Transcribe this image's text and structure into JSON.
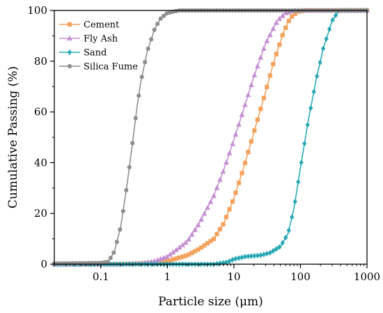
{
  "chart_data": {
    "type": "line",
    "x_scale": "log",
    "xlabel": "Particle size (μm)",
    "ylabel": "Cumulative Passing (%)",
    "xlim": [
      0.02,
      1000
    ],
    "ylim": [
      0,
      100
    ],
    "x_ticks": [
      0.1,
      1,
      10,
      100,
      1000
    ],
    "x_tick_labels": [
      "0.1",
      "1",
      "10",
      "100",
      "1000"
    ],
    "y_ticks": [
      0,
      20,
      40,
      60,
      80,
      100
    ],
    "y_tick_labels": [
      "0",
      "20",
      "40",
      "60",
      "80",
      "100"
    ],
    "grid": false,
    "legend_position": "top-left",
    "series": [
      {
        "name": "Cement",
        "color": "#F5A25D",
        "marker": "square",
        "points": [
          [
            0.2,
            0
          ],
          [
            0.4,
            0.2
          ],
          [
            0.6,
            0.5
          ],
          [
            1,
            1.2
          ],
          [
            2,
            3.5
          ],
          [
            3,
            6
          ],
          [
            5,
            10
          ],
          [
            7,
            16
          ],
          [
            10,
            26
          ],
          [
            14,
            38
          ],
          [
            20,
            52
          ],
          [
            30,
            68
          ],
          [
            40,
            80
          ],
          [
            55,
            91
          ],
          [
            70,
            97
          ],
          [
            90,
            99.5
          ],
          [
            120,
            100
          ],
          [
            1000,
            100
          ]
        ]
      },
      {
        "name": "Fly Ash",
        "color": "#C58FD2",
        "marker": "triangle",
        "points": [
          [
            0.2,
            0
          ],
          [
            0.4,
            0.4
          ],
          [
            0.6,
            1
          ],
          [
            1,
            3
          ],
          [
            2,
            9
          ],
          [
            3,
            16
          ],
          [
            5,
            27
          ],
          [
            7,
            37
          ],
          [
            10,
            49
          ],
          [
            14,
            61
          ],
          [
            20,
            74
          ],
          [
            30,
            87
          ],
          [
            45,
            96
          ],
          [
            60,
            99
          ],
          [
            80,
            100
          ],
          [
            1000,
            100
          ]
        ]
      },
      {
        "name": "Sand",
        "color": "#2AA9B5",
        "marker": "diamond",
        "points": [
          [
            0.02,
            0
          ],
          [
            5,
            0
          ],
          [
            8,
            0.8
          ],
          [
            10,
            2
          ],
          [
            15,
            3
          ],
          [
            25,
            3.5
          ],
          [
            35,
            4.5
          ],
          [
            50,
            7
          ],
          [
            65,
            12
          ],
          [
            80,
            22
          ],
          [
            100,
            38
          ],
          [
            130,
            56
          ],
          [
            170,
            72
          ],
          [
            220,
            85
          ],
          [
            300,
            96
          ],
          [
            380,
            100
          ],
          [
            1000,
            100
          ]
        ]
      },
      {
        "name": "Silica Fume",
        "color": "#8E8E8E",
        "marker": "circle",
        "points": [
          [
            0.02,
            0.3
          ],
          [
            0.1,
            0.5
          ],
          [
            0.13,
            1
          ],
          [
            0.16,
            5
          ],
          [
            0.2,
            15
          ],
          [
            0.25,
            32
          ],
          [
            0.3,
            48
          ],
          [
            0.35,
            62
          ],
          [
            0.4,
            72
          ],
          [
            0.5,
            84
          ],
          [
            0.65,
            93
          ],
          [
            0.8,
            97
          ],
          [
            1,
            99
          ],
          [
            1.5,
            100
          ],
          [
            1000,
            100
          ]
        ]
      }
    ]
  }
}
